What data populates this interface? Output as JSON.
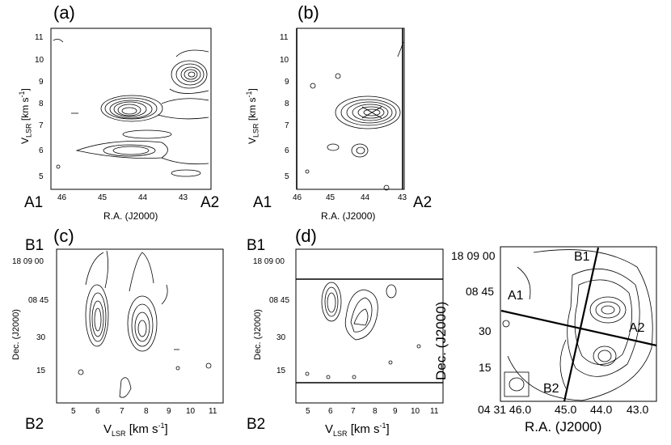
{
  "panels": [
    {
      "id": "a",
      "label": "(a)",
      "xlabel": "R.A. (J2000)",
      "ylabel_main": "V",
      "ylabel_sub": "LSR",
      "ylabel_unit": " [km s",
      "ylabel_exp": "-1",
      "ylabel_close": "]",
      "x_ticks": [
        "46",
        "45",
        "44",
        "43"
      ],
      "y_ticks": [
        "5",
        "6",
        "7",
        "8",
        "9",
        "10",
        "11"
      ],
      "end_left": "A1",
      "end_right": "A2"
    },
    {
      "id": "b",
      "label": "(b)",
      "xlabel": "R.A. (J2000)",
      "ylabel_main": "V",
      "ylabel_sub": "LSR",
      "ylabel_unit": " [km s",
      "ylabel_exp": "-1",
      "ylabel_close": "]",
      "x_ticks": [
        "46",
        "45",
        "44",
        "43"
      ],
      "y_ticks": [
        "5",
        "6",
        "7",
        "8",
        "9",
        "10",
        "11"
      ],
      "end_left": "A1",
      "end_right": "A2"
    },
    {
      "id": "c",
      "label": "(c)",
      "xlabel_main": "V",
      "xlabel_sub": "LSR",
      "xlabel_unit": " [km s",
      "xlabel_exp": "-1",
      "xlabel_close": "]",
      "ylabel": "Dec. (J2000)",
      "x_ticks": [
        "5",
        "6",
        "7",
        "8",
        "9",
        "10",
        "11"
      ],
      "y_ticks": [
        "18 09 00",
        "08 45",
        "30",
        "15"
      ],
      "end_top": "B1",
      "end_bottom": "B2"
    },
    {
      "id": "d",
      "label": "(d)",
      "xlabel_main": "V",
      "xlabel_sub": "LSR",
      "xlabel_unit": " [km s",
      "xlabel_exp": "-1",
      "xlabel_close": "]",
      "ylabel": "Dec. (J2000)",
      "x_ticks": [
        "5",
        "6",
        "7",
        "8",
        "9",
        "10",
        "11"
      ],
      "y_ticks": [
        "18 09 00",
        "08 45",
        "30",
        "15"
      ],
      "end_top": "B1",
      "end_bottom": "B2"
    },
    {
      "id": "map",
      "xlabel": "R.A. (J2000)",
      "ylabel": "Dec. (J2000)",
      "x_ticks": [
        "04 31 46.0",
        "45.0",
        "44.0",
        "43.0"
      ],
      "y_ticks": [
        "18 09 00",
        "08 45",
        "30",
        "15"
      ],
      "cut_labels": [
        "A1",
        "A2",
        "B1",
        "B2"
      ]
    }
  ]
}
